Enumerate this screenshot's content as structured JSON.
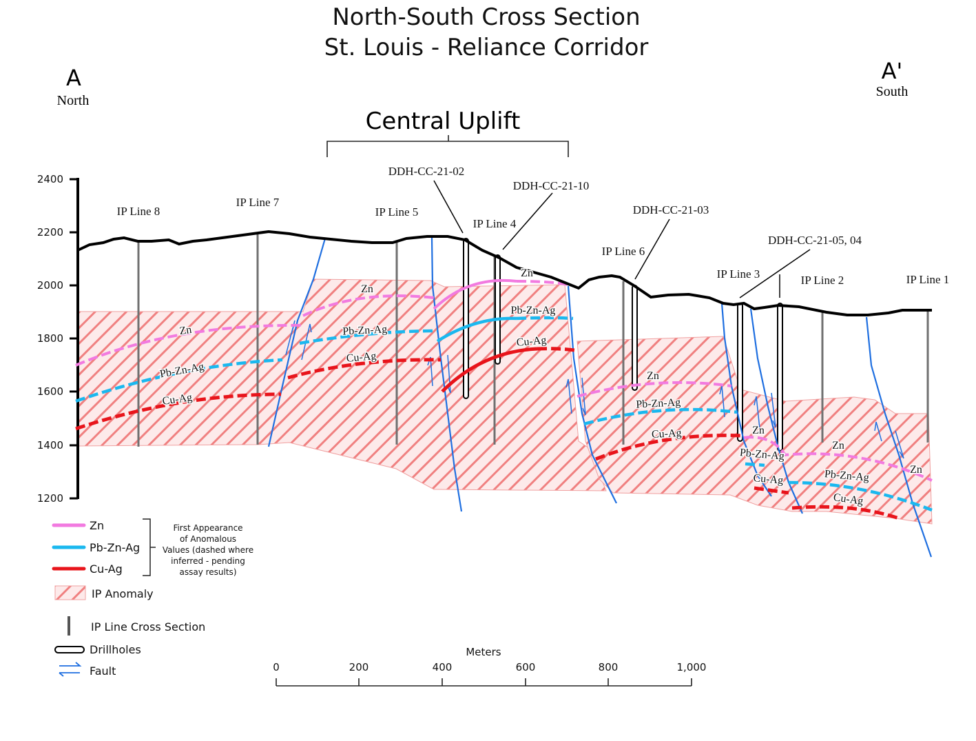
{
  "title": {
    "line1": "North-South Cross Section",
    "line2": "St. Louis - Reliance Corridor"
  },
  "ends": {
    "north_letter": "A",
    "north_label": "North",
    "south_letter": "A'",
    "south_label": "South"
  },
  "central_uplift": "Central Uplift",
  "elevation_axis": {
    "ticks": [
      "2400",
      "2200",
      "2000",
      "1800",
      "1600",
      "1400",
      "1200"
    ]
  },
  "ip_lines": {
    "line8": "IP Line 8",
    "line7": "IP Line 7",
    "line5": "IP Line 5",
    "line4": "IP Line 4",
    "line6": "IP Line 6",
    "line3": "IP Line 3",
    "line2": "IP Line 2",
    "line1": "IP Line 1"
  },
  "drillholes": {
    "h02": "DDH-CC-21-02",
    "h10": "DDH-CC-21-10",
    "h03": "DDH-CC-21-03",
    "h0504": "DDH-CC-21-05, 04"
  },
  "zone_labels": {
    "zn": "Zn",
    "pbznag": "Pb-Zn-Ag",
    "cuag": "Cu-Ag"
  },
  "legend": {
    "zn": "Zn",
    "pbznag": "Pb-Zn-Ag",
    "cuag": "Cu-Ag",
    "note1": "First Appearance",
    "note2": "of Anomalous",
    "note3": "Values (dashed where",
    "note4": "inferred - pending",
    "note5": "assay results)",
    "ip_anomaly": "IP Anomaly",
    "ip_line_section": "IP Line Cross Section",
    "drillholes": "Drillholes",
    "fault": "Fault"
  },
  "scale_bar": {
    "unit": "Meters",
    "ticks": [
      "0",
      "200",
      "400",
      "600",
      "800",
      "1,000"
    ]
  },
  "colors": {
    "zn": "#f27ae0",
    "pbznag": "#1ab8ef",
    "cuag": "#e8141b",
    "fault": "#1f6fe0",
    "anomaly_stripe": "#f07a7a",
    "anomaly_fill": "#fde8e8",
    "topography": "#000000",
    "ip_line": "#707070"
  }
}
